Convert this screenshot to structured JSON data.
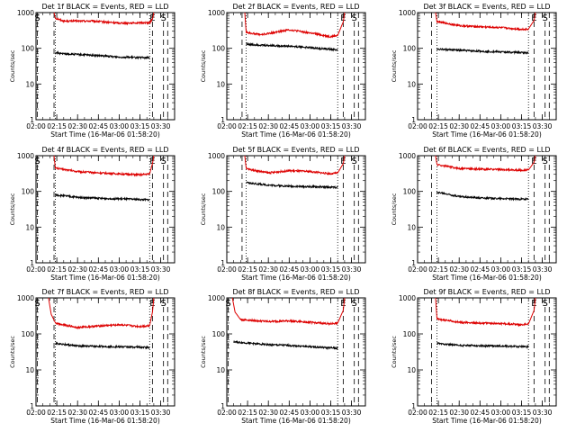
{
  "chart_data": [
    {
      "type": "line",
      "title": "Det 1f BLACK = Events, RED = LLD",
      "xlabel": "Start Time (16-Mar-06 01:58:20)",
      "ylabel": "Counts/sec",
      "y_scale": "log",
      "ylim": [
        1,
        1000
      ],
      "yticks": [
        "1",
        "10",
        "100",
        "1000"
      ],
      "xlim": [
        "02:00",
        "03:40"
      ],
      "xticks": [
        "02:00",
        "02:15",
        "02:30",
        "02:45",
        "03:00",
        "03:15",
        "03:30"
      ],
      "dashed_lines": [
        "02:01",
        "02:13",
        "03:24",
        "03:32",
        "03:35"
      ],
      "dotted_lines": [
        "02:14",
        "03:22"
      ],
      "markers": [
        {
          "text": "S",
          "at": "02:01"
        },
        {
          "text": "E",
          "at": "03:24"
        },
        {
          "text": "S",
          "at": "03:32"
        }
      ],
      "series": [
        {
          "name": "RED",
          "color": "#dd0000",
          "points": [
            [
              "02:13",
              1000
            ],
            [
              "02:14",
              700
            ],
            [
              "02:20",
              580
            ],
            [
              "02:40",
              580
            ],
            [
              "03:00",
              510
            ],
            [
              "03:22",
              520
            ],
            [
              "03:24",
              650
            ],
            [
              "03:25",
              1000
            ]
          ]
        },
        {
          "name": "BLACK",
          "color": "#000000",
          "points": [
            [
              "02:14",
              75
            ],
            [
              "02:20",
              70
            ],
            [
              "02:40",
              64
            ],
            [
              "03:00",
              57
            ],
            [
              "03:22",
              54
            ]
          ]
        }
      ]
    },
    {
      "type": "line",
      "title": "Det 2f BLACK = Events, RED = LLD",
      "xlabel": "Start Time (16-Mar-06 01:58:20)",
      "ylabel": "Counts/sec",
      "y_scale": "log",
      "ylim": [
        1,
        1000
      ],
      "yticks": [
        "1",
        "10",
        "100",
        "1000"
      ],
      "xlim": [
        "02:00",
        "03:40"
      ],
      "xticks": [
        "02:00",
        "02:15",
        "02:30",
        "02:45",
        "03:00",
        "03:15",
        "03:30"
      ],
      "dashed_lines": [
        "02:11",
        "03:24",
        "03:32",
        "03:35"
      ],
      "dotted_lines": [
        "02:14",
        "03:20"
      ],
      "markers": [
        {
          "text": "E",
          "at": "03:24"
        },
        {
          "text": "S",
          "at": "03:32"
        }
      ],
      "series": [
        {
          "name": "RED",
          "color": "#dd0000",
          "points": [
            [
              "02:13",
              1000
            ],
            [
              "02:14",
              280
            ],
            [
              "02:25",
              240
            ],
            [
              "02:45",
              330
            ],
            [
              "03:00",
              270
            ],
            [
              "03:15",
              210
            ],
            [
              "03:20",
              230
            ],
            [
              "03:24",
              550
            ],
            [
              "03:25",
              1000
            ]
          ]
        },
        {
          "name": "BLACK",
          "color": "#000000",
          "points": [
            [
              "02:14",
              130
            ],
            [
              "02:30",
              120
            ],
            [
              "02:45",
              115
            ],
            [
              "03:00",
              105
            ],
            [
              "03:20",
              90
            ]
          ]
        }
      ]
    },
    {
      "type": "line",
      "title": "Det 3f BLACK = Events, RED = LLD",
      "xlabel": "Start Time (16-Mar-06 01:58:20)",
      "ylabel": "Counts/sec",
      "y_scale": "log",
      "ylim": [
        1,
        1000
      ],
      "yticks": [
        "1",
        "10",
        "100",
        "1000"
      ],
      "xlim": [
        "02:00",
        "03:40"
      ],
      "xticks": [
        "02:00",
        "02:15",
        "02:30",
        "02:45",
        "03:00",
        "03:15",
        "03:30"
      ],
      "dashed_lines": [
        "02:10",
        "03:24",
        "03:32",
        "03:35"
      ],
      "dotted_lines": [
        "02:14",
        "03:20"
      ],
      "markers": [
        {
          "text": "E",
          "at": "03:24"
        },
        {
          "text": "S",
          "at": "03:32"
        }
      ],
      "series": [
        {
          "name": "RED",
          "color": "#dd0000",
          "points": [
            [
              "02:13",
              1000
            ],
            [
              "02:14",
              560
            ],
            [
              "02:30",
              430
            ],
            [
              "02:45",
              400
            ],
            [
              "03:00",
              380
            ],
            [
              "03:15",
              340
            ],
            [
              "03:20",
              350
            ],
            [
              "03:24",
              600
            ],
            [
              "03:25",
              1000
            ]
          ]
        },
        {
          "name": "BLACK",
          "color": "#000000",
          "points": [
            [
              "02:14",
              95
            ],
            [
              "02:30",
              88
            ],
            [
              "02:45",
              83
            ],
            [
              "03:00",
              79
            ],
            [
              "03:20",
              75
            ]
          ]
        }
      ]
    },
    {
      "type": "line",
      "title": "Det 4f BLACK = Events, RED = LLD",
      "xlabel": "Start Time (16-Mar-06 01:58:20)",
      "ylabel": "Counts/sec",
      "y_scale": "log",
      "ylim": [
        1,
        1000
      ],
      "yticks": [
        "1",
        "10",
        "100",
        "1000"
      ],
      "xlim": [
        "02:00",
        "03:40"
      ],
      "xticks": [
        "02:00",
        "02:15",
        "02:30",
        "02:45",
        "03:00",
        "03:15",
        "03:30"
      ],
      "dashed_lines": [
        "02:01",
        "02:13",
        "03:24",
        "03:32",
        "03:35"
      ],
      "dotted_lines": [
        "02:14",
        "03:22"
      ],
      "markers": [
        {
          "text": "S",
          "at": "02:01"
        },
        {
          "text": "E",
          "at": "03:24"
        },
        {
          "text": "S",
          "at": "03:32"
        }
      ],
      "series": [
        {
          "name": "RED",
          "color": "#dd0000",
          "points": [
            [
              "02:13",
              1000
            ],
            [
              "02:14",
              450
            ],
            [
              "02:30",
              360
            ],
            [
              "02:45",
              330
            ],
            [
              "03:00",
              310
            ],
            [
              "03:15",
              290
            ],
            [
              "03:22",
              310
            ],
            [
              "03:24",
              600
            ],
            [
              "03:25",
              1000
            ]
          ]
        },
        {
          "name": "BLACK",
          "color": "#000000",
          "points": [
            [
              "02:14",
              80
            ],
            [
              "02:30",
              68
            ],
            [
              "02:45",
              64
            ],
            [
              "03:00",
              62
            ],
            [
              "03:22",
              58
            ]
          ]
        }
      ]
    },
    {
      "type": "line",
      "title": "Det 5f BLACK = Events, RED = LLD",
      "xlabel": "Start Time (16-Mar-06 01:58:20)",
      "ylabel": "Counts/sec",
      "y_scale": "log",
      "ylim": [
        1,
        1000
      ],
      "yticks": [
        "1",
        "10",
        "100",
        "1000"
      ],
      "xlim": [
        "02:00",
        "03:40"
      ],
      "xticks": [
        "02:00",
        "02:15",
        "02:30",
        "02:45",
        "03:00",
        "03:15",
        "03:30"
      ],
      "dashed_lines": [
        "02:11",
        "03:24",
        "03:32",
        "03:35"
      ],
      "dotted_lines": [
        "02:14",
        "03:20"
      ],
      "markers": [
        {
          "text": "E",
          "at": "03:24"
        },
        {
          "text": "S",
          "at": "03:32"
        }
      ],
      "series": [
        {
          "name": "RED",
          "color": "#dd0000",
          "points": [
            [
              "02:13",
              1000
            ],
            [
              "02:14",
              430
            ],
            [
              "02:30",
              330
            ],
            [
              "02:45",
              380
            ],
            [
              "03:00",
              360
            ],
            [
              "03:15",
              310
            ],
            [
              "03:20",
              330
            ],
            [
              "03:24",
              600
            ],
            [
              "03:25",
              1000
            ]
          ]
        },
        {
          "name": "BLACK",
          "color": "#000000",
          "points": [
            [
              "02:14",
              175
            ],
            [
              "02:30",
              150
            ],
            [
              "02:45",
              140
            ],
            [
              "03:00",
              135
            ],
            [
              "03:20",
              130
            ]
          ]
        }
      ]
    },
    {
      "type": "line",
      "title": "Det 6f BLACK = Events, RED = LLD",
      "xlabel": "Start Time (16-Mar-06 01:58:20)",
      "ylabel": "Counts/sec",
      "y_scale": "log",
      "ylim": [
        1,
        1000
      ],
      "yticks": [
        "1",
        "10",
        "100",
        "1000"
      ],
      "xlim": [
        "02:00",
        "03:40"
      ],
      "xticks": [
        "02:00",
        "02:15",
        "02:30",
        "02:45",
        "03:00",
        "03:15",
        "03:30"
      ],
      "dashed_lines": [
        "02:10",
        "03:24",
        "03:32",
        "03:35"
      ],
      "dotted_lines": [
        "02:14",
        "03:20"
      ],
      "markers": [
        {
          "text": "E",
          "at": "03:24"
        },
        {
          "text": "S",
          "at": "03:32"
        }
      ],
      "series": [
        {
          "name": "RED",
          "color": "#dd0000",
          "points": [
            [
              "02:13",
              1000
            ],
            [
              "02:14",
              560
            ],
            [
              "02:30",
              440
            ],
            [
              "02:45",
              420
            ],
            [
              "03:00",
              410
            ],
            [
              "03:15",
              390
            ],
            [
              "03:20",
              400
            ],
            [
              "03:24",
              650
            ],
            [
              "03:25",
              1000
            ]
          ]
        },
        {
          "name": "BLACK",
          "color": "#000000",
          "points": [
            [
              "02:14",
              95
            ],
            [
              "02:30",
              72
            ],
            [
              "02:45",
              66
            ],
            [
              "03:00",
              63
            ],
            [
              "03:20",
              60
            ]
          ]
        }
      ]
    },
    {
      "type": "line",
      "title": "Det 7f BLACK = Events, RED = LLD",
      "xlabel": "Start Time (16-Mar-06 01:58:20)",
      "ylabel": "Counts/sec",
      "y_scale": "log",
      "ylim": [
        1,
        1000
      ],
      "yticks": [
        "1",
        "10",
        "100",
        "1000"
      ],
      "xlim": [
        "02:00",
        "03:40"
      ],
      "xticks": [
        "02:00",
        "02:15",
        "02:30",
        "02:45",
        "03:00",
        "03:15",
        "03:30"
      ],
      "dashed_lines": [
        "02:01",
        "02:13",
        "03:24",
        "03:32",
        "03:35"
      ],
      "dotted_lines": [
        "02:14",
        "03:22"
      ],
      "markers": [
        {
          "text": "S",
          "at": "02:01"
        },
        {
          "text": "E",
          "at": "03:24"
        },
        {
          "text": "S",
          "at": "03:32"
        }
      ],
      "series": [
        {
          "name": "RED",
          "color": "#dd0000",
          "points": [
            [
              "02:09",
              1000
            ],
            [
              "02:11",
              350
            ],
            [
              "02:14",
              200
            ],
            [
              "02:30",
              150
            ],
            [
              "02:45",
              165
            ],
            [
              "03:00",
              180
            ],
            [
              "03:15",
              160
            ],
            [
              "03:22",
              170
            ],
            [
              "03:24",
              400
            ],
            [
              "03:25",
              1000
            ]
          ]
        },
        {
          "name": "BLACK",
          "color": "#000000",
          "points": [
            [
              "02:14",
              55
            ],
            [
              "02:30",
              46
            ],
            [
              "02:45",
              45
            ],
            [
              "03:00",
              44
            ],
            [
              "03:22",
              42
            ]
          ]
        }
      ]
    },
    {
      "type": "line",
      "title": "Det 8f BLACK = Events, RED = LLD",
      "xlabel": "Start Time (16-Mar-06 01:58:20)",
      "ylabel": "Counts/sec",
      "y_scale": "log",
      "ylim": [
        1,
        1000
      ],
      "yticks": [
        "1",
        "10",
        "100",
        "1000"
      ],
      "xlim": [
        "02:00",
        "03:40"
      ],
      "xticks": [
        "02:00",
        "02:15",
        "02:30",
        "02:45",
        "03:00",
        "03:15",
        "03:30"
      ],
      "dashed_lines": [
        "02:01",
        "03:24",
        "03:32",
        "03:35"
      ],
      "dotted_lines": [
        "03:20"
      ],
      "markers": [
        {
          "text": "S",
          "at": "02:01"
        },
        {
          "text": "E",
          "at": "03:24"
        },
        {
          "text": "S",
          "at": "03:32"
        }
      ],
      "series": [
        {
          "name": "RED",
          "color": "#dd0000",
          "points": [
            [
              "02:04",
              1000
            ],
            [
              "02:06",
              400
            ],
            [
              "02:10",
              250
            ],
            [
              "02:30",
              220
            ],
            [
              "02:45",
              230
            ],
            [
              "03:00",
              210
            ],
            [
              "03:15",
              190
            ],
            [
              "03:20",
              200
            ],
            [
              "03:24",
              450
            ],
            [
              "03:25",
              1000
            ]
          ]
        },
        {
          "name": "BLACK",
          "color": "#000000",
          "points": [
            [
              "02:05",
              60
            ],
            [
              "02:30",
              50
            ],
            [
              "02:45",
              48
            ],
            [
              "03:00",
              44
            ],
            [
              "03:20",
              40
            ]
          ]
        }
      ]
    },
    {
      "type": "line",
      "title": "Det 9f BLACK = Events, RED = LLD",
      "xlabel": "Start Time (16-Mar-06 01:58:20)",
      "ylabel": "Counts/sec",
      "y_scale": "log",
      "ylim": [
        1,
        1000
      ],
      "yticks": [
        "1",
        "10",
        "100",
        "1000"
      ],
      "xlim": [
        "02:00",
        "03:40"
      ],
      "xticks": [
        "02:00",
        "02:15",
        "02:30",
        "02:45",
        "03:00",
        "03:15",
        "03:30"
      ],
      "dashed_lines": [
        "02:10",
        "03:24",
        "03:32",
        "03:35"
      ],
      "dotted_lines": [
        "02:14",
        "03:20"
      ],
      "markers": [
        {
          "text": "E",
          "at": "03:24"
        },
        {
          "text": "S",
          "at": "03:32"
        }
      ],
      "series": [
        {
          "name": "RED",
          "color": "#dd0000",
          "points": [
            [
              "02:13",
              1000
            ],
            [
              "02:14",
              260
            ],
            [
              "02:30",
              210
            ],
            [
              "02:45",
              200
            ],
            [
              "03:00",
              195
            ],
            [
              "03:15",
              180
            ],
            [
              "03:20",
              190
            ],
            [
              "03:24",
              450
            ],
            [
              "03:25",
              1000
            ]
          ]
        },
        {
          "name": "BLACK",
          "color": "#000000",
          "points": [
            [
              "02:14",
              55
            ],
            [
              "02:30",
              48
            ],
            [
              "02:45",
              47
            ],
            [
              "03:00",
              46
            ],
            [
              "03:20",
              44
            ]
          ]
        }
      ]
    }
  ]
}
